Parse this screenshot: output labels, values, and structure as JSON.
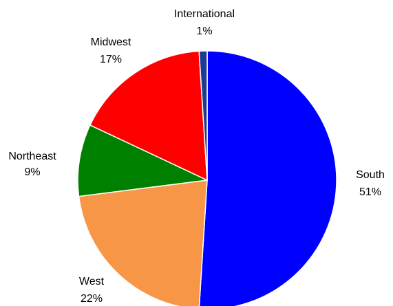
{
  "chart_data": {
    "type": "pie",
    "title": "",
    "slices": [
      {
        "label": "South",
        "value": 51,
        "value_label": "51%",
        "color": "#0000FF"
      },
      {
        "label": "West",
        "value": 22,
        "value_label": "22%",
        "color": "#F79646"
      },
      {
        "label": "Northeast",
        "value": 9,
        "value_label": "9%",
        "color": "#008000"
      },
      {
        "label": "Midwest",
        "value": 17,
        "value_label": "17%",
        "color": "#FF0000"
      },
      {
        "label": "International",
        "value": 1,
        "value_label": "1%",
        "color": "#1F3A93"
      }
    ],
    "start_angle_deg": 0,
    "direction": "clockwise",
    "legend": "none",
    "labels": "outside"
  }
}
